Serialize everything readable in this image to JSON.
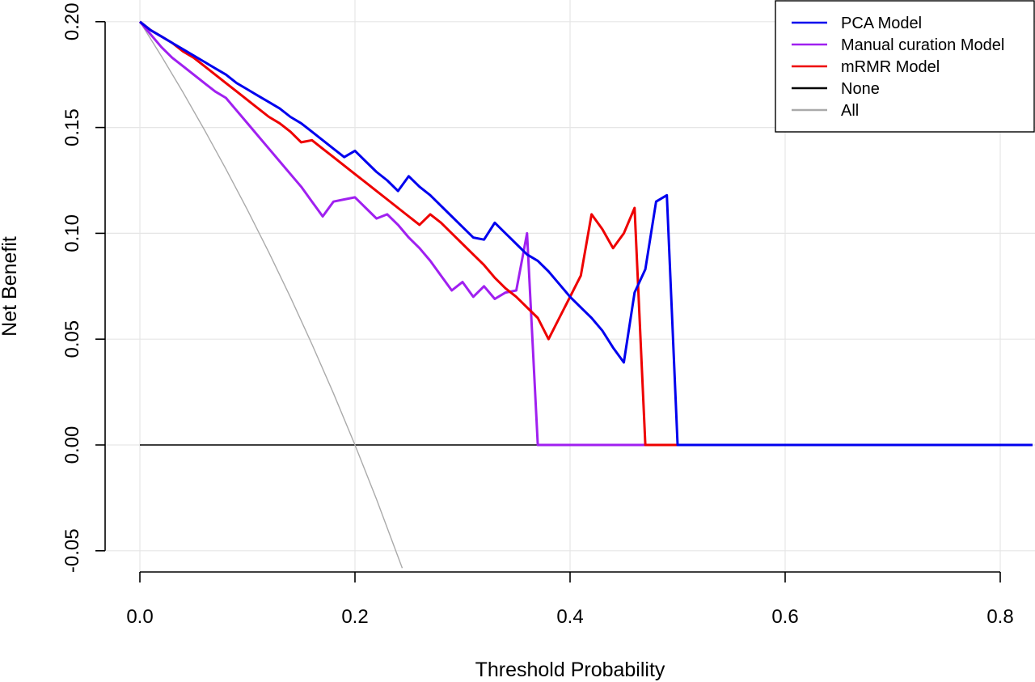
{
  "chart_data": {
    "type": "line",
    "title": "",
    "xlabel": "Threshold Probability",
    "ylabel": "Net Benefit",
    "xlim": [
      0,
      0.83
    ],
    "ylim": [
      -0.05,
      0.2
    ],
    "x_ticks": [
      0.0,
      0.2,
      0.4,
      0.6,
      0.8
    ],
    "x_tick_labels": [
      "0.0",
      "0.2",
      "0.4",
      "0.6",
      "0.8"
    ],
    "y_ticks": [
      -0.05,
      0.0,
      0.05,
      0.1,
      0.15,
      0.2
    ],
    "y_tick_labels": [
      "-0.05",
      "0.00",
      "0.05",
      "0.10",
      "0.15",
      "0.20"
    ],
    "grid": true,
    "legend_position": "top-right",
    "series": [
      {
        "name": "PCA Model",
        "color": "#0000ee",
        "x": [
          0.0,
          0.01,
          0.02,
          0.03,
          0.04,
          0.05,
          0.06,
          0.07,
          0.08,
          0.09,
          0.1,
          0.11,
          0.12,
          0.13,
          0.14,
          0.15,
          0.16,
          0.17,
          0.18,
          0.19,
          0.2,
          0.21,
          0.22,
          0.23,
          0.24,
          0.25,
          0.26,
          0.27,
          0.28,
          0.29,
          0.3,
          0.31,
          0.32,
          0.33,
          0.34,
          0.35,
          0.36,
          0.37,
          0.38,
          0.39,
          0.4,
          0.41,
          0.42,
          0.43,
          0.44,
          0.45,
          0.46,
          0.47,
          0.48,
          0.49,
          0.5,
          0.51,
          0.83
        ],
        "values": [
          0.2,
          0.196,
          0.193,
          0.19,
          0.187,
          0.184,
          0.181,
          0.178,
          0.175,
          0.171,
          0.168,
          0.165,
          0.162,
          0.159,
          0.155,
          0.152,
          0.148,
          0.144,
          0.14,
          0.136,
          0.139,
          0.134,
          0.129,
          0.125,
          0.12,
          0.127,
          0.122,
          0.118,
          0.113,
          0.108,
          0.103,
          0.098,
          0.097,
          0.105,
          0.1,
          0.095,
          0.09,
          0.087,
          0.082,
          0.076,
          0.07,
          0.065,
          0.06,
          0.054,
          0.046,
          0.039,
          0.072,
          0.083,
          0.115,
          0.118,
          0.0,
          0.0,
          0.0
        ]
      },
      {
        "name": "Manual curation Model",
        "color": "#a020f0",
        "x": [
          0.0,
          0.01,
          0.02,
          0.03,
          0.04,
          0.05,
          0.06,
          0.07,
          0.08,
          0.09,
          0.1,
          0.11,
          0.12,
          0.13,
          0.14,
          0.15,
          0.16,
          0.17,
          0.18,
          0.19,
          0.2,
          0.21,
          0.22,
          0.23,
          0.24,
          0.25,
          0.26,
          0.27,
          0.28,
          0.29,
          0.3,
          0.31,
          0.32,
          0.33,
          0.34,
          0.35,
          0.36,
          0.37,
          0.38,
          0.83
        ],
        "values": [
          0.2,
          0.194,
          0.188,
          0.183,
          0.179,
          0.175,
          0.171,
          0.167,
          0.164,
          0.158,
          0.152,
          0.146,
          0.14,
          0.134,
          0.128,
          0.122,
          0.115,
          0.108,
          0.115,
          0.116,
          0.117,
          0.112,
          0.107,
          0.109,
          0.104,
          0.098,
          0.093,
          0.087,
          0.08,
          0.073,
          0.077,
          0.07,
          0.075,
          0.069,
          0.072,
          0.073,
          0.1,
          0.0,
          0.0,
          0.0
        ]
      },
      {
        "name": "mRMR Model",
        "color": "#ee0000",
        "x": [
          0.0,
          0.01,
          0.02,
          0.03,
          0.04,
          0.05,
          0.06,
          0.07,
          0.08,
          0.09,
          0.1,
          0.11,
          0.12,
          0.13,
          0.14,
          0.15,
          0.16,
          0.17,
          0.18,
          0.19,
          0.2,
          0.21,
          0.22,
          0.23,
          0.24,
          0.25,
          0.26,
          0.27,
          0.28,
          0.29,
          0.3,
          0.31,
          0.32,
          0.33,
          0.34,
          0.35,
          0.36,
          0.37,
          0.38,
          0.39,
          0.4,
          0.41,
          0.42,
          0.43,
          0.44,
          0.45,
          0.46,
          0.47,
          0.48,
          0.83
        ],
        "values": [
          0.2,
          0.196,
          0.193,
          0.19,
          0.186,
          0.183,
          0.179,
          0.175,
          0.171,
          0.167,
          0.163,
          0.159,
          0.155,
          0.152,
          0.148,
          0.143,
          0.144,
          0.14,
          0.136,
          0.132,
          0.128,
          0.124,
          0.12,
          0.116,
          0.112,
          0.108,
          0.104,
          0.109,
          0.105,
          0.1,
          0.095,
          0.09,
          0.085,
          0.079,
          0.074,
          0.07,
          0.065,
          0.06,
          0.05,
          0.06,
          0.07,
          0.08,
          0.109,
          0.102,
          0.093,
          0.1,
          0.112,
          0.0,
          0.0,
          0.0
        ]
      },
      {
        "name": "None",
        "color": "#000000",
        "x": [
          0.0,
          0.83
        ],
        "values": [
          0.0,
          0.0
        ]
      },
      {
        "name": "All",
        "color": "#aaaaaa",
        "x": [
          0.0,
          0.02,
          0.04,
          0.06,
          0.08,
          0.1,
          0.12,
          0.14,
          0.16,
          0.18,
          0.2,
          0.22,
          0.244
        ],
        "values": [
          0.2,
          0.1837,
          0.1667,
          0.1489,
          0.1304,
          0.1111,
          0.0909,
          0.0698,
          0.0476,
          0.0244,
          0.0,
          -0.0256,
          -0.0582
        ]
      }
    ]
  }
}
